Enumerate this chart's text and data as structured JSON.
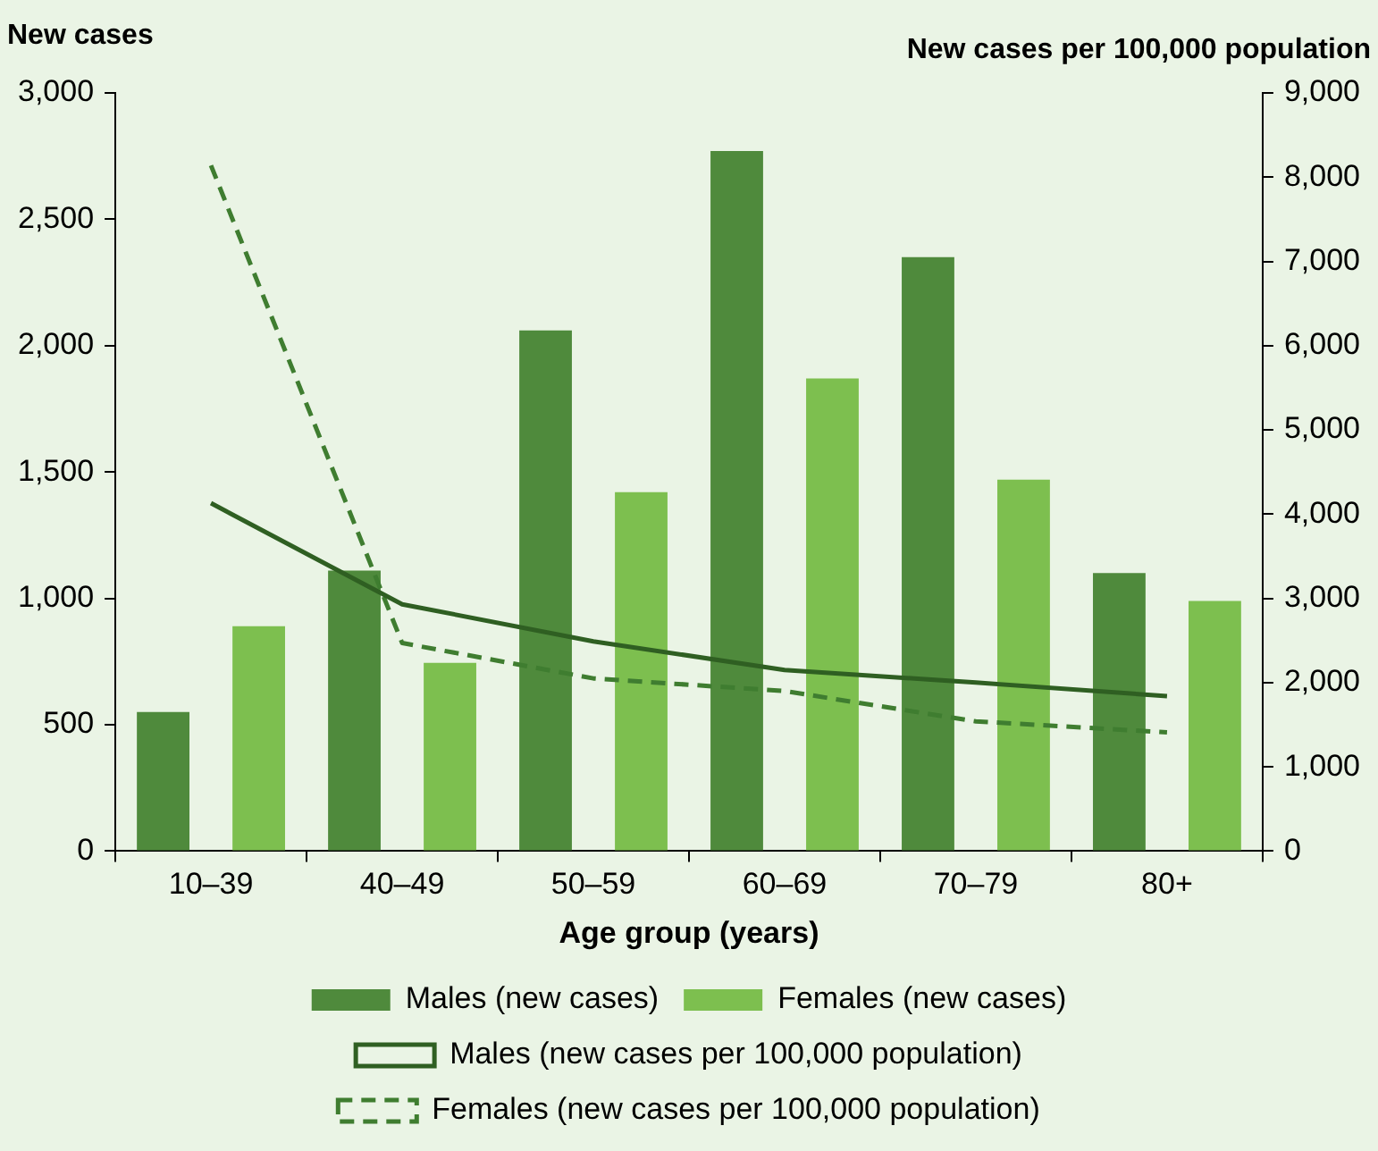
{
  "chart_data": {
    "type": "bar",
    "xlabel": "Age group (years)",
    "ylabel": "New cases",
    "y2label": "New cases per 100,000 population",
    "categories": [
      "10–39",
      "40–49",
      "50–59",
      "60–69",
      "70–79",
      "80+"
    ],
    "series": [
      {
        "name": "Males (new cases)",
        "color": "#4f8a3c",
        "values": [
          550,
          1110,
          2060,
          2770,
          2350,
          1100
        ]
      },
      {
        "name": "Females (new cases)",
        "color": "#7dbf4f",
        "values": [
          890,
          745,
          1420,
          1870,
          1470,
          990
        ]
      },
      {
        "name": "Males (new cases per 100,000 population)",
        "type": "line",
        "axis": "y2",
        "color": "#2f5f22",
        "line_style": "solid",
        "values": [
          4130,
          2930,
          2490,
          2150,
          2000,
          1840
        ]
      },
      {
        "name": "Females (new cases per 100,000 population)",
        "type": "line",
        "axis": "y2",
        "color": "#3f7d30",
        "line_style": "dashed",
        "values": [
          8140,
          2470,
          2050,
          1900,
          1540,
          1410
        ]
      }
    ],
    "ylim": [
      0,
      3000
    ],
    "yticks": [
      {
        "value": 0,
        "label": "0"
      },
      {
        "value": 500,
        "label": "500"
      },
      {
        "value": 1000,
        "label": "1,000"
      },
      {
        "value": 1500,
        "label": "1,500"
      },
      {
        "value": 2000,
        "label": "2,000"
      },
      {
        "value": 2500,
        "label": "2,500"
      },
      {
        "value": 3000,
        "label": "3,000"
      }
    ],
    "y2lim": [
      0,
      9000
    ],
    "y2ticks": [
      {
        "value": 0,
        "label": "0"
      },
      {
        "value": 1000,
        "label": "1,000"
      },
      {
        "value": 2000,
        "label": "2,000"
      },
      {
        "value": 3000,
        "label": "3,000"
      },
      {
        "value": 4000,
        "label": "4,000"
      },
      {
        "value": 5000,
        "label": "5,000"
      },
      {
        "value": 6000,
        "label": "6,000"
      },
      {
        "value": 7000,
        "label": "7,000"
      },
      {
        "value": 8000,
        "label": "8,000"
      },
      {
        "value": 9000,
        "label": "9,000"
      }
    ],
    "grid": false,
    "legend": "bottom",
    "marker": "none"
  }
}
